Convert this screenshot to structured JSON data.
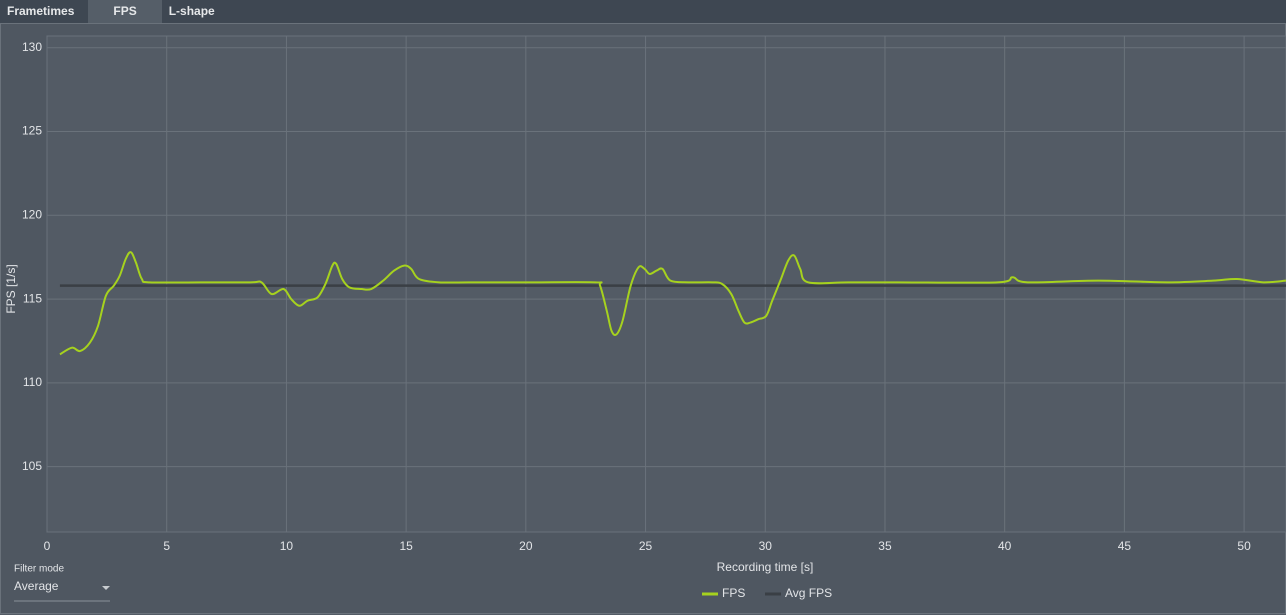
{
  "tabs": [
    "Frametimes",
    "FPS",
    "L-shape"
  ],
  "filter": {
    "label": "Filter mode",
    "value": "Average"
  },
  "chart_data": {
    "type": "line",
    "xlabel": "Recording time [s]",
    "ylabel": "FPS [1/s]",
    "xlim": [
      0,
      51.75
    ],
    "ylim": [
      101.1,
      130.7
    ],
    "xticks": [
      0,
      5,
      10,
      15,
      20,
      25,
      30,
      35,
      40,
      45,
      50
    ],
    "yticks": [
      105,
      110,
      115,
      120,
      125,
      130
    ],
    "grid": true,
    "series": [
      {
        "name": "FPS",
        "color": "#a6d21e",
        "x": [
          0.54,
          1.04,
          1.38,
          1.79,
          2.13,
          2.46,
          2.79,
          3.04,
          3.29,
          3.5,
          3.71,
          3.96,
          4.29,
          6.4,
          8.5,
          8.96,
          9.38,
          9.88,
          10.2,
          10.54,
          10.88,
          11.3,
          11.63,
          11.92,
          12.08,
          12.33,
          12.63,
          13.13,
          13.54,
          14.04,
          14.5,
          14.92,
          15.21,
          15.54,
          16.38,
          17.6,
          20.1,
          22.9,
          23.1,
          23.38,
          23.58,
          23.79,
          24.04,
          24.38,
          24.71,
          24.96,
          25.17,
          25.46,
          25.71,
          26.04,
          26.8,
          27.8,
          28.2,
          28.58,
          28.88,
          29.13,
          29.38,
          29.71,
          30.04,
          30.29,
          30.63,
          30.96,
          31.21,
          31.46,
          31.79,
          33.46,
          35.54,
          39.7,
          40.33,
          40.96,
          43.9,
          46.8,
          48.7,
          49.7,
          50.8,
          51.75
        ],
        "values": [
          111.7,
          112.1,
          111.9,
          112.4,
          113.4,
          115.2,
          115.8,
          116.4,
          117.4,
          117.8,
          117.2,
          116.2,
          116.0,
          116.0,
          116.0,
          116.0,
          115.3,
          115.6,
          115.0,
          114.6,
          114.9,
          115.1,
          115.9,
          117.0,
          117.1,
          116.2,
          115.7,
          115.6,
          115.6,
          116.1,
          116.7,
          117.0,
          116.8,
          116.2,
          116.0,
          116.0,
          116.0,
          116.0,
          115.8,
          114.3,
          113.1,
          112.9,
          113.7,
          115.8,
          116.9,
          116.8,
          116.5,
          116.7,
          116.8,
          116.1,
          116.0,
          116.0,
          115.9,
          115.3,
          114.3,
          113.6,
          113.6,
          113.8,
          114.0,
          114.9,
          116.1,
          117.3,
          117.6,
          116.8,
          116.0,
          116.0,
          116.0,
          116.0,
          116.3,
          116.0,
          116.1,
          116.0,
          116.1,
          116.2,
          116.0,
          116.1
        ]
      },
      {
        "name": "Avg FPS",
        "color": "#3a3f45",
        "x": [
          0.54,
          51.75
        ],
        "values": [
          115.8,
          115.8
        ]
      }
    ]
  }
}
